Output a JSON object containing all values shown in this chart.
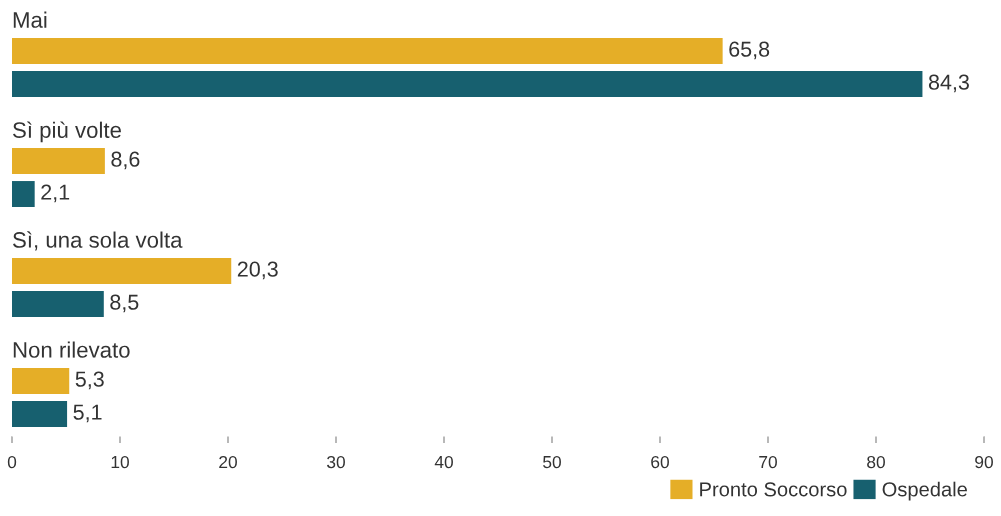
{
  "chart_data": {
    "type": "bar",
    "orientation": "horizontal",
    "categories": [
      "Mai",
      "Sì più volte",
      "Sì, una sola volta",
      "Non rilevato"
    ],
    "series": [
      {
        "name": "Pronto Soccorso",
        "color": "#e5ae27",
        "values": [
          65.8,
          8.6,
          20.3,
          5.3
        ],
        "value_labels": [
          "65,8",
          "8,6",
          "20,3",
          "5,3"
        ]
      },
      {
        "name": "Ospedale",
        "color": "#17606f",
        "values": [
          84.3,
          2.1,
          8.5,
          5.1
        ],
        "value_labels": [
          "84,3",
          "2,1",
          "8,5",
          "5,1"
        ]
      }
    ],
    "xlim": [
      0,
      90
    ],
    "xticks": [
      0,
      10,
      20,
      30,
      40,
      50,
      60,
      70,
      80,
      90
    ],
    "grid": false,
    "legend": "bottom right"
  }
}
